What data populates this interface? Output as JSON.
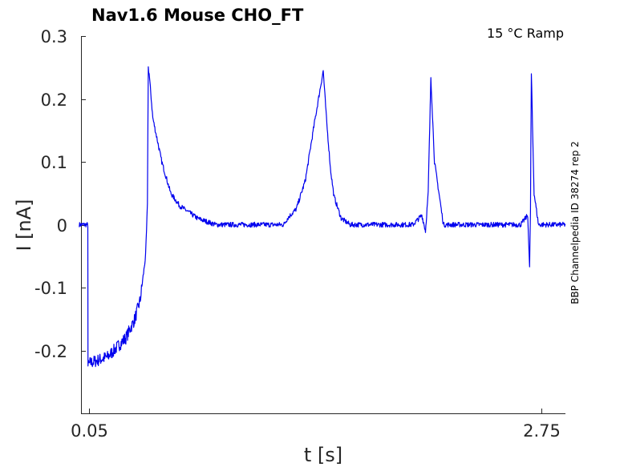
{
  "chart_data": {
    "type": "line",
    "title": "Nav1.6  Mouse  CHO_FT",
    "annotation": "15 °C  Ramp",
    "side_label": "BBP Channelpedia ID 38274 rep 2",
    "xlabel": "t [s]",
    "ylabel": "I [nA]",
    "xlim": [
      0.05,
      2.75
    ],
    "ylim": [
      -0.3,
      0.3
    ],
    "x_ticks": [
      0.05,
      2.75
    ],
    "x_tick_labels": [
      "0.05",
      "2.75"
    ],
    "y_ticks": [
      -0.2,
      -0.1,
      0,
      0.1,
      0.2,
      0.3
    ],
    "y_tick_labels": [
      "-0.2",
      "-0.1",
      "0",
      "0.1",
      "0.2",
      "0.3"
    ],
    "grid": false,
    "legend": "none",
    "series_color": "#0000ee",
    "series": [
      {
        "x": [
          0.04,
          0.06,
          0.088,
          0.089,
          0.1,
          0.2,
          0.3,
          0.35,
          0.38,
          0.41,
          0.42,
          0.425,
          0.43,
          0.45,
          0.5,
          0.55,
          0.6,
          0.65,
          0.7,
          0.8,
          0.9,
          1.0,
          1.1,
          1.18,
          1.2,
          1.25,
          1.3,
          1.35,
          1.4,
          1.42,
          1.44,
          1.46,
          1.5,
          1.55,
          1.6,
          1.65,
          1.7,
          1.8,
          1.9,
          1.95,
          1.97,
          1.985,
          2.0,
          2.02,
          2.06,
          2.07,
          2.08,
          2.1,
          2.15,
          2.2,
          2.3,
          2.4,
          2.5,
          2.54,
          2.55,
          2.555,
          2.56,
          2.575,
          2.6,
          2.65,
          2.7,
          2.75
        ],
        "y": [
          0.0,
          0.0,
          0.0,
          -0.225,
          -0.22,
          -0.21,
          -0.18,
          -0.15,
          -0.12,
          -0.05,
          0.03,
          0.25,
          0.24,
          0.17,
          0.1,
          0.05,
          0.03,
          0.02,
          0.01,
          0.0,
          0.0,
          0.0,
          0.0,
          0.0,
          0.01,
          0.025,
          0.07,
          0.16,
          0.245,
          0.16,
          0.09,
          0.045,
          0.01,
          0.0,
          0.0,
          0.0,
          0.0,
          0.0,
          0.0,
          0.015,
          -0.01,
          0.05,
          0.235,
          0.1,
          0.02,
          0.0,
          0.0,
          0.0,
          0.0,
          0.0,
          0.0,
          0.0,
          0.0,
          0.015,
          -0.07,
          0.02,
          0.24,
          0.05,
          0.0,
          0.0,
          0.0,
          0.0
        ]
      }
    ]
  }
}
